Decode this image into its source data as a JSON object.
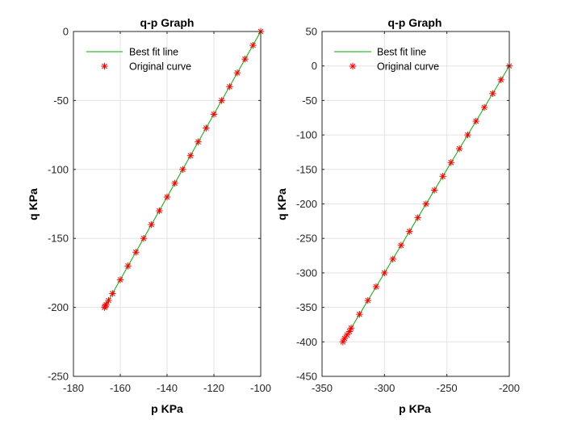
{
  "chart_data": [
    {
      "type": "line",
      "title": "q-p Graph",
      "xlabel": "p KPa",
      "ylabel": "q KPa",
      "xlim": [
        -180,
        -100
      ],
      "ylim": [
        -250,
        0
      ],
      "xticks": [
        -180,
        -160,
        -140,
        -120,
        -100
      ],
      "yticks": [
        -250,
        -200,
        -150,
        -100,
        -50,
        0
      ],
      "grid": true,
      "legend_position": "top-left",
      "series": [
        {
          "name": "Best fit line",
          "style": "line",
          "color": "#00b000",
          "x": [
            -166.7,
            -100
          ],
          "y": [
            -200,
            0
          ]
        },
        {
          "name": "Original curve",
          "style": "marker-asterisk",
          "color": "#ff0000",
          "x": [
            -100,
            -103.3,
            -106.7,
            -110,
            -113.3,
            -116.7,
            -120,
            -123.3,
            -126.7,
            -130,
            -133.3,
            -136.7,
            -140,
            -143.3,
            -146.7,
            -150,
            -153.3,
            -156.7,
            -160,
            -163.3,
            -165,
            -166,
            -166.4,
            -166.7
          ],
          "y": [
            0,
            -10,
            -20,
            -30,
            -40,
            -50,
            -60,
            -70,
            -80,
            -90,
            -100,
            -110,
            -120,
            -130,
            -140,
            -150,
            -160,
            -170,
            -180,
            -190,
            -195,
            -198,
            -199,
            -200
          ]
        }
      ]
    },
    {
      "type": "line",
      "title": "q-p Graph",
      "xlabel": "p KPa",
      "ylabel": "q KPa",
      "xlim": [
        -350,
        -200
      ],
      "ylim": [
        -450,
        50
      ],
      "xticks": [
        -350,
        -300,
        -250,
        -200
      ],
      "yticks": [
        -450,
        -400,
        -350,
        -300,
        -250,
        -200,
        -150,
        -100,
        -50,
        0,
        50
      ],
      "grid": true,
      "legend_position": "top-left",
      "series": [
        {
          "name": "Best fit line",
          "style": "line",
          "color": "#00b000",
          "x": [
            -333.3,
            -200
          ],
          "y": [
            -400,
            0
          ]
        },
        {
          "name": "Original curve",
          "style": "marker-asterisk",
          "color": "#ff0000",
          "x": [
            -200,
            -206.7,
            -213.3,
            -220,
            -226.7,
            -233.3,
            -240,
            -246.7,
            -253.3,
            -260,
            -266.7,
            -273.3,
            -280,
            -286.7,
            -293.3,
            -300,
            -306.7,
            -313.3,
            -320,
            -326.7,
            -328,
            -330,
            -332,
            -333.3
          ],
          "y": [
            0,
            -20,
            -40,
            -60,
            -80,
            -100,
            -120,
            -140,
            -160,
            -180,
            -200,
            -220,
            -240,
            -260,
            -280,
            -300,
            -320,
            -340,
            -360,
            -380,
            -385,
            -390,
            -395,
            -400
          ]
        }
      ]
    }
  ]
}
